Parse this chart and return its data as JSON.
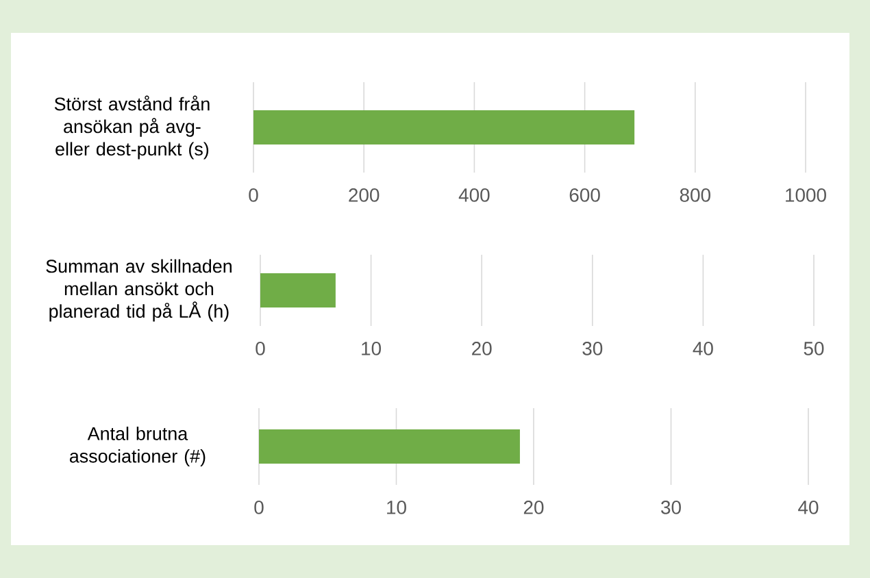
{
  "chart_data": [
    {
      "type": "bar",
      "orientation": "horizontal",
      "categories": [
        "Störst avstånd från ansökan på avg- eller dest-punkt (s)"
      ],
      "values": [
        690
      ],
      "color": "#70ad47",
      "xlim": [
        0,
        1000
      ],
      "xticks": [
        0,
        200,
        400,
        600,
        800,
        1000
      ],
      "grid": "x"
    },
    {
      "type": "bar",
      "orientation": "horizontal",
      "categories": [
        "Summan av skillnaden mellan ansökt och planerad tid på LÅ (h)"
      ],
      "values": [
        6.8
      ],
      "color": "#70ad47",
      "xlim": [
        0,
        50
      ],
      "xticks": [
        0,
        10,
        20,
        30,
        40,
        50
      ],
      "grid": "x"
    },
    {
      "type": "bar",
      "orientation": "horizontal",
      "categories": [
        "Antal brutna associationer (#)"
      ],
      "values": [
        19
      ],
      "color": "#70ad47",
      "xlim": [
        0,
        40
      ],
      "xticks": [
        0,
        10,
        20,
        30,
        40
      ],
      "grid": "x"
    }
  ]
}
